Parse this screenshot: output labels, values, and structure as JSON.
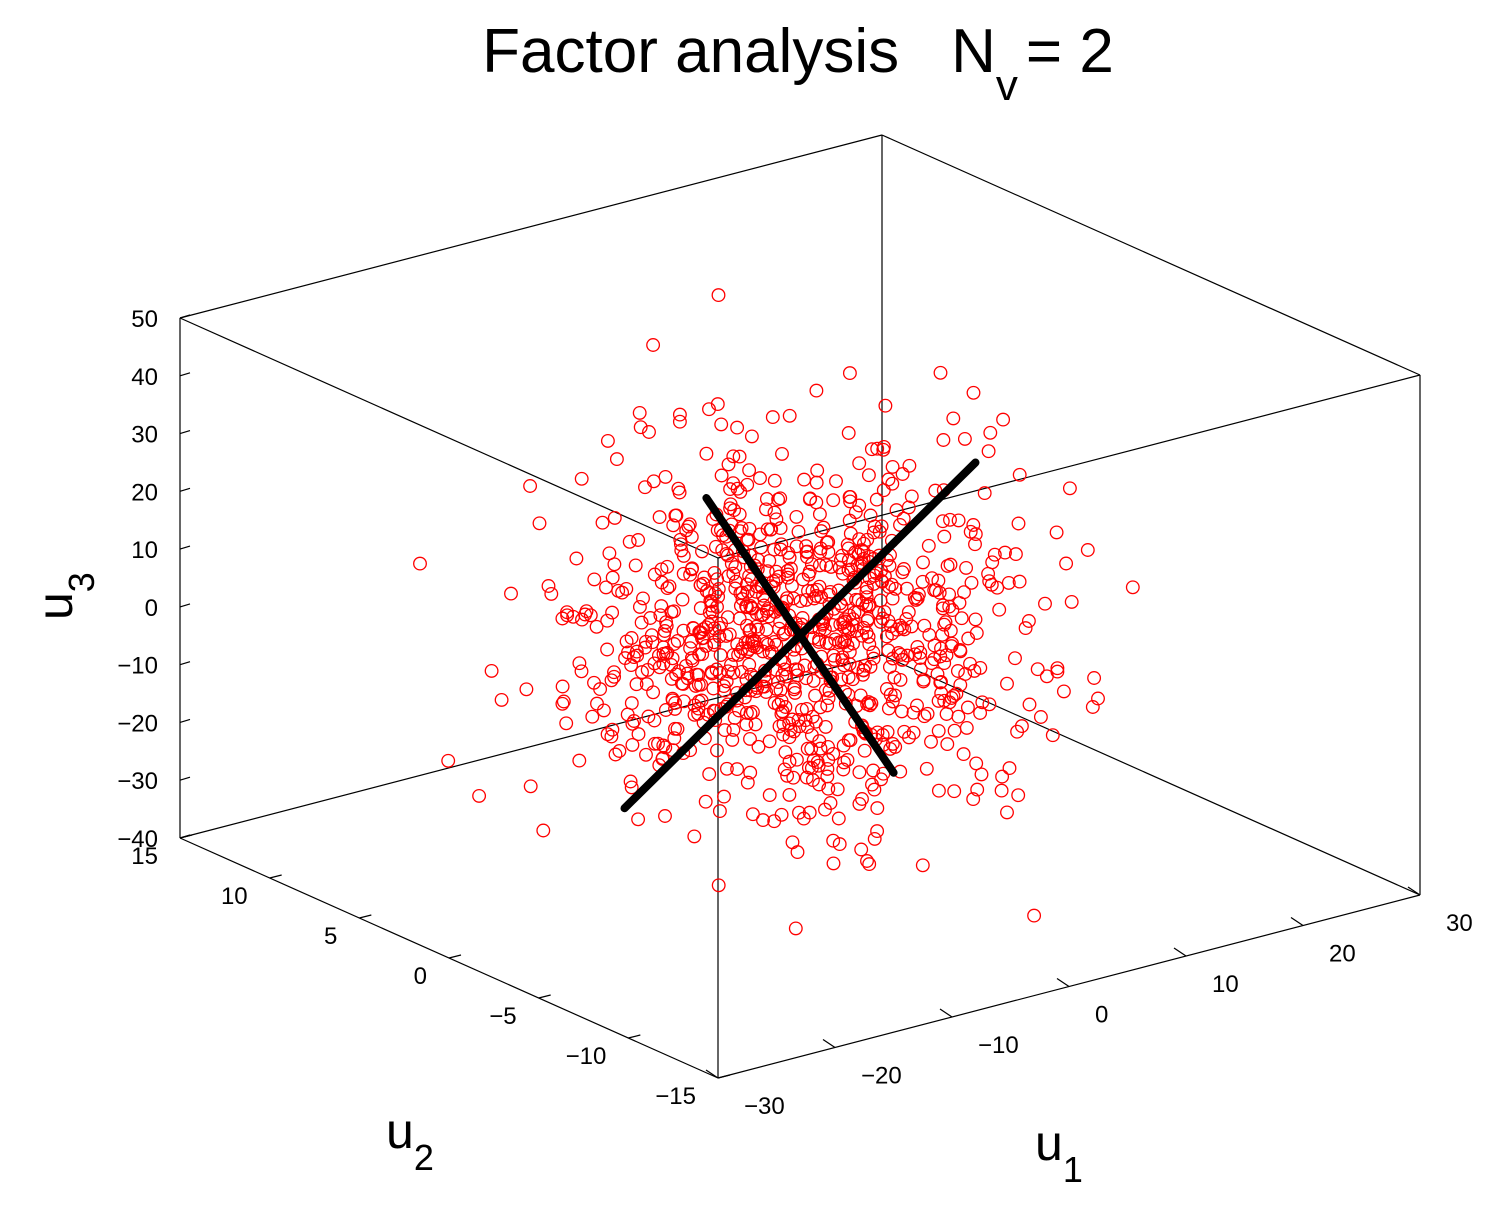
{
  "chart_data": {
    "type": "scatter",
    "projection": "3d",
    "title": {
      "main": "Factor analysis",
      "var": "N",
      "sub": "v",
      "rest": "= 2"
    },
    "axes": {
      "x": {
        "name": "u",
        "sub": "1",
        "ticks": [
          -30,
          -20,
          -10,
          0,
          10,
          20,
          30
        ],
        "tick_labels": [
          "−30",
          "−20",
          "−10",
          "0",
          "10",
          "20",
          "30"
        ],
        "lim": [
          -30,
          30
        ]
      },
      "y": {
        "name": "u",
        "sub": "2",
        "ticks": [
          -15,
          -10,
          -5,
          0,
          5,
          10,
          15
        ],
        "tick_labels": [
          "−15",
          "−10",
          "−5",
          "0",
          "5",
          "10",
          "15"
        ],
        "lim": [
          -15,
          15
        ]
      },
      "z": {
        "name": "u",
        "sub": "3",
        "ticks": [
          -40,
          -30,
          -20,
          -10,
          0,
          10,
          20,
          30,
          40,
          50
        ],
        "tick_labels": [
          "−40",
          "−30",
          "−20",
          "−10",
          "0",
          "10",
          "20",
          "30",
          "40",
          "50"
        ],
        "lim": [
          -40,
          50
        ]
      }
    },
    "point_series": {
      "marker": "open-circle",
      "color": "#ff0000",
      "count": 1000,
      "distribution": "Gaussian cloud centred at origin",
      "std": {
        "u1": 8,
        "u2": 4,
        "u3": 14
      },
      "seed": 7
    },
    "factor_lines": [
      {
        "name": "",
        "color": "#000000",
        "from": [
          -15,
          0,
          -22
        ],
        "to": [
          15,
          0,
          22
        ]
      },
      {
        "name": "",
        "color": "#000000",
        "from": [
          -8,
          0,
          28
        ],
        "to": [
          8,
          0,
          -28
        ]
      }
    ],
    "grid": false,
    "box": true
  }
}
